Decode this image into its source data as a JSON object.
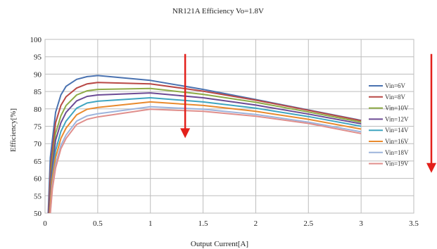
{
  "chart_data": {
    "type": "line",
    "title": "NR121A Efficiency   Vo=1.8V",
    "xlabel": "Output Current[A]",
    "ylabel": "Efficiency[%]",
    "xlim": [
      0,
      3.5
    ],
    "ylim": [
      50,
      100
    ],
    "xticks": [
      0,
      0.5,
      1,
      1.5,
      2,
      2.5,
      3,
      3.5
    ],
    "xtick_labels": [
      "0",
      "0.5",
      "1",
      "1.5",
      "2",
      "2.5",
      "3",
      "3.5"
    ],
    "yticks": [
      50,
      55,
      60,
      65,
      70,
      75,
      80,
      85,
      90,
      95,
      100
    ],
    "ytick_labels": [
      "50",
      "55",
      "60",
      "65",
      "70",
      "75",
      "80",
      "85",
      "90",
      "95",
      "100"
    ],
    "grid": true,
    "legend_position": "right",
    "series": [
      {
        "name": "Vin=6V",
        "color": "#4a72b0",
        "x": [
          0.03,
          0.05,
          0.1,
          0.15,
          0.2,
          0.3,
          0.4,
          0.5,
          1,
          1.5,
          2,
          2.5,
          3
        ],
        "y": [
          50,
          66,
          79,
          84,
          86.5,
          88.5,
          89.3,
          89.6,
          88.2,
          85.6,
          82.7,
          79.7,
          76.7
        ]
      },
      {
        "name": "Vin=8V",
        "color": "#b84845",
        "x": [
          0.035,
          0.055,
          0.1,
          0.15,
          0.2,
          0.3,
          0.4,
          0.5,
          1,
          1.5,
          2,
          2.5,
          3
        ],
        "y": [
          50,
          64,
          76,
          81,
          83.5,
          86,
          87.2,
          87.6,
          87.2,
          85.1,
          82.5,
          79.6,
          76.6
        ]
      },
      {
        "name": "Vin=10V",
        "color": "#8eab46",
        "x": [
          0.04,
          0.06,
          0.1,
          0.15,
          0.2,
          0.3,
          0.4,
          0.5,
          1,
          1.5,
          2,
          2.5,
          3
        ],
        "y": [
          50,
          63,
          73,
          78,
          81,
          84,
          85.2,
          85.6,
          85.9,
          84.2,
          81.9,
          79.1,
          76.2
        ]
      },
      {
        "name": "Vin=12V",
        "color": "#6c4b95",
        "x": [
          0.04,
          0.06,
          0.1,
          0.15,
          0.2,
          0.3,
          0.4,
          0.5,
          1,
          1.5,
          2,
          2.5,
          3
        ],
        "y": [
          50,
          61,
          71,
          76,
          79,
          82.3,
          83.6,
          84,
          84.6,
          83.2,
          81.1,
          78.5,
          75.7
        ]
      },
      {
        "name": "Vin=14V",
        "color": "#3fa5c0",
        "x": [
          0.045,
          0.065,
          0.1,
          0.15,
          0.2,
          0.3,
          0.4,
          0.5,
          1,
          1.5,
          2,
          2.5,
          3
        ],
        "y": [
          50,
          60,
          68,
          73.5,
          76.5,
          80.2,
          81.7,
          82.2,
          83.2,
          82,
          80.2,
          77.8,
          75
        ]
      },
      {
        "name": "Vin=16V",
        "color": "#e98a2e",
        "x": [
          0.045,
          0.065,
          0.1,
          0.15,
          0.2,
          0.3,
          0.4,
          0.5,
          1,
          1.5,
          2,
          2.5,
          3
        ],
        "y": [
          50,
          59,
          66,
          71.5,
          74.5,
          78.3,
          79.9,
          80.4,
          82,
          81,
          79.3,
          77,
          74.2
        ]
      },
      {
        "name": "Vin=18V",
        "color": "#9db4dc",
        "x": [
          0.05,
          0.07,
          0.1,
          0.15,
          0.2,
          0.3,
          0.4,
          0.5,
          1,
          1.5,
          2,
          2.5,
          3
        ],
        "y": [
          50,
          58,
          64,
          69.5,
          72.5,
          76.5,
          78,
          78.6,
          80.6,
          79.9,
          78.4,
          76.2,
          73.4
        ]
      },
      {
        "name": "Vin=19V",
        "color": "#e08f8c",
        "x": [
          0.05,
          0.07,
          0.1,
          0.15,
          0.2,
          0.3,
          0.4,
          0.5,
          1,
          1.5,
          2,
          2.5,
          3
        ],
        "y": [
          50,
          57,
          63,
          68.5,
          71.5,
          75.5,
          77,
          77.7,
          79.9,
          79.3,
          77.9,
          75.8,
          72.9
        ]
      }
    ],
    "annotations": [
      {
        "type": "arrow",
        "direction": "down",
        "color": "#e3201b",
        "x": 1.33,
        "y_from": 95.8,
        "y_to": 72
      },
      {
        "type": "arrow",
        "direction": "down",
        "color": "#e3201b",
        "x_position": "right of legend",
        "y_from": 95.8,
        "y_to": 62
      }
    ]
  }
}
